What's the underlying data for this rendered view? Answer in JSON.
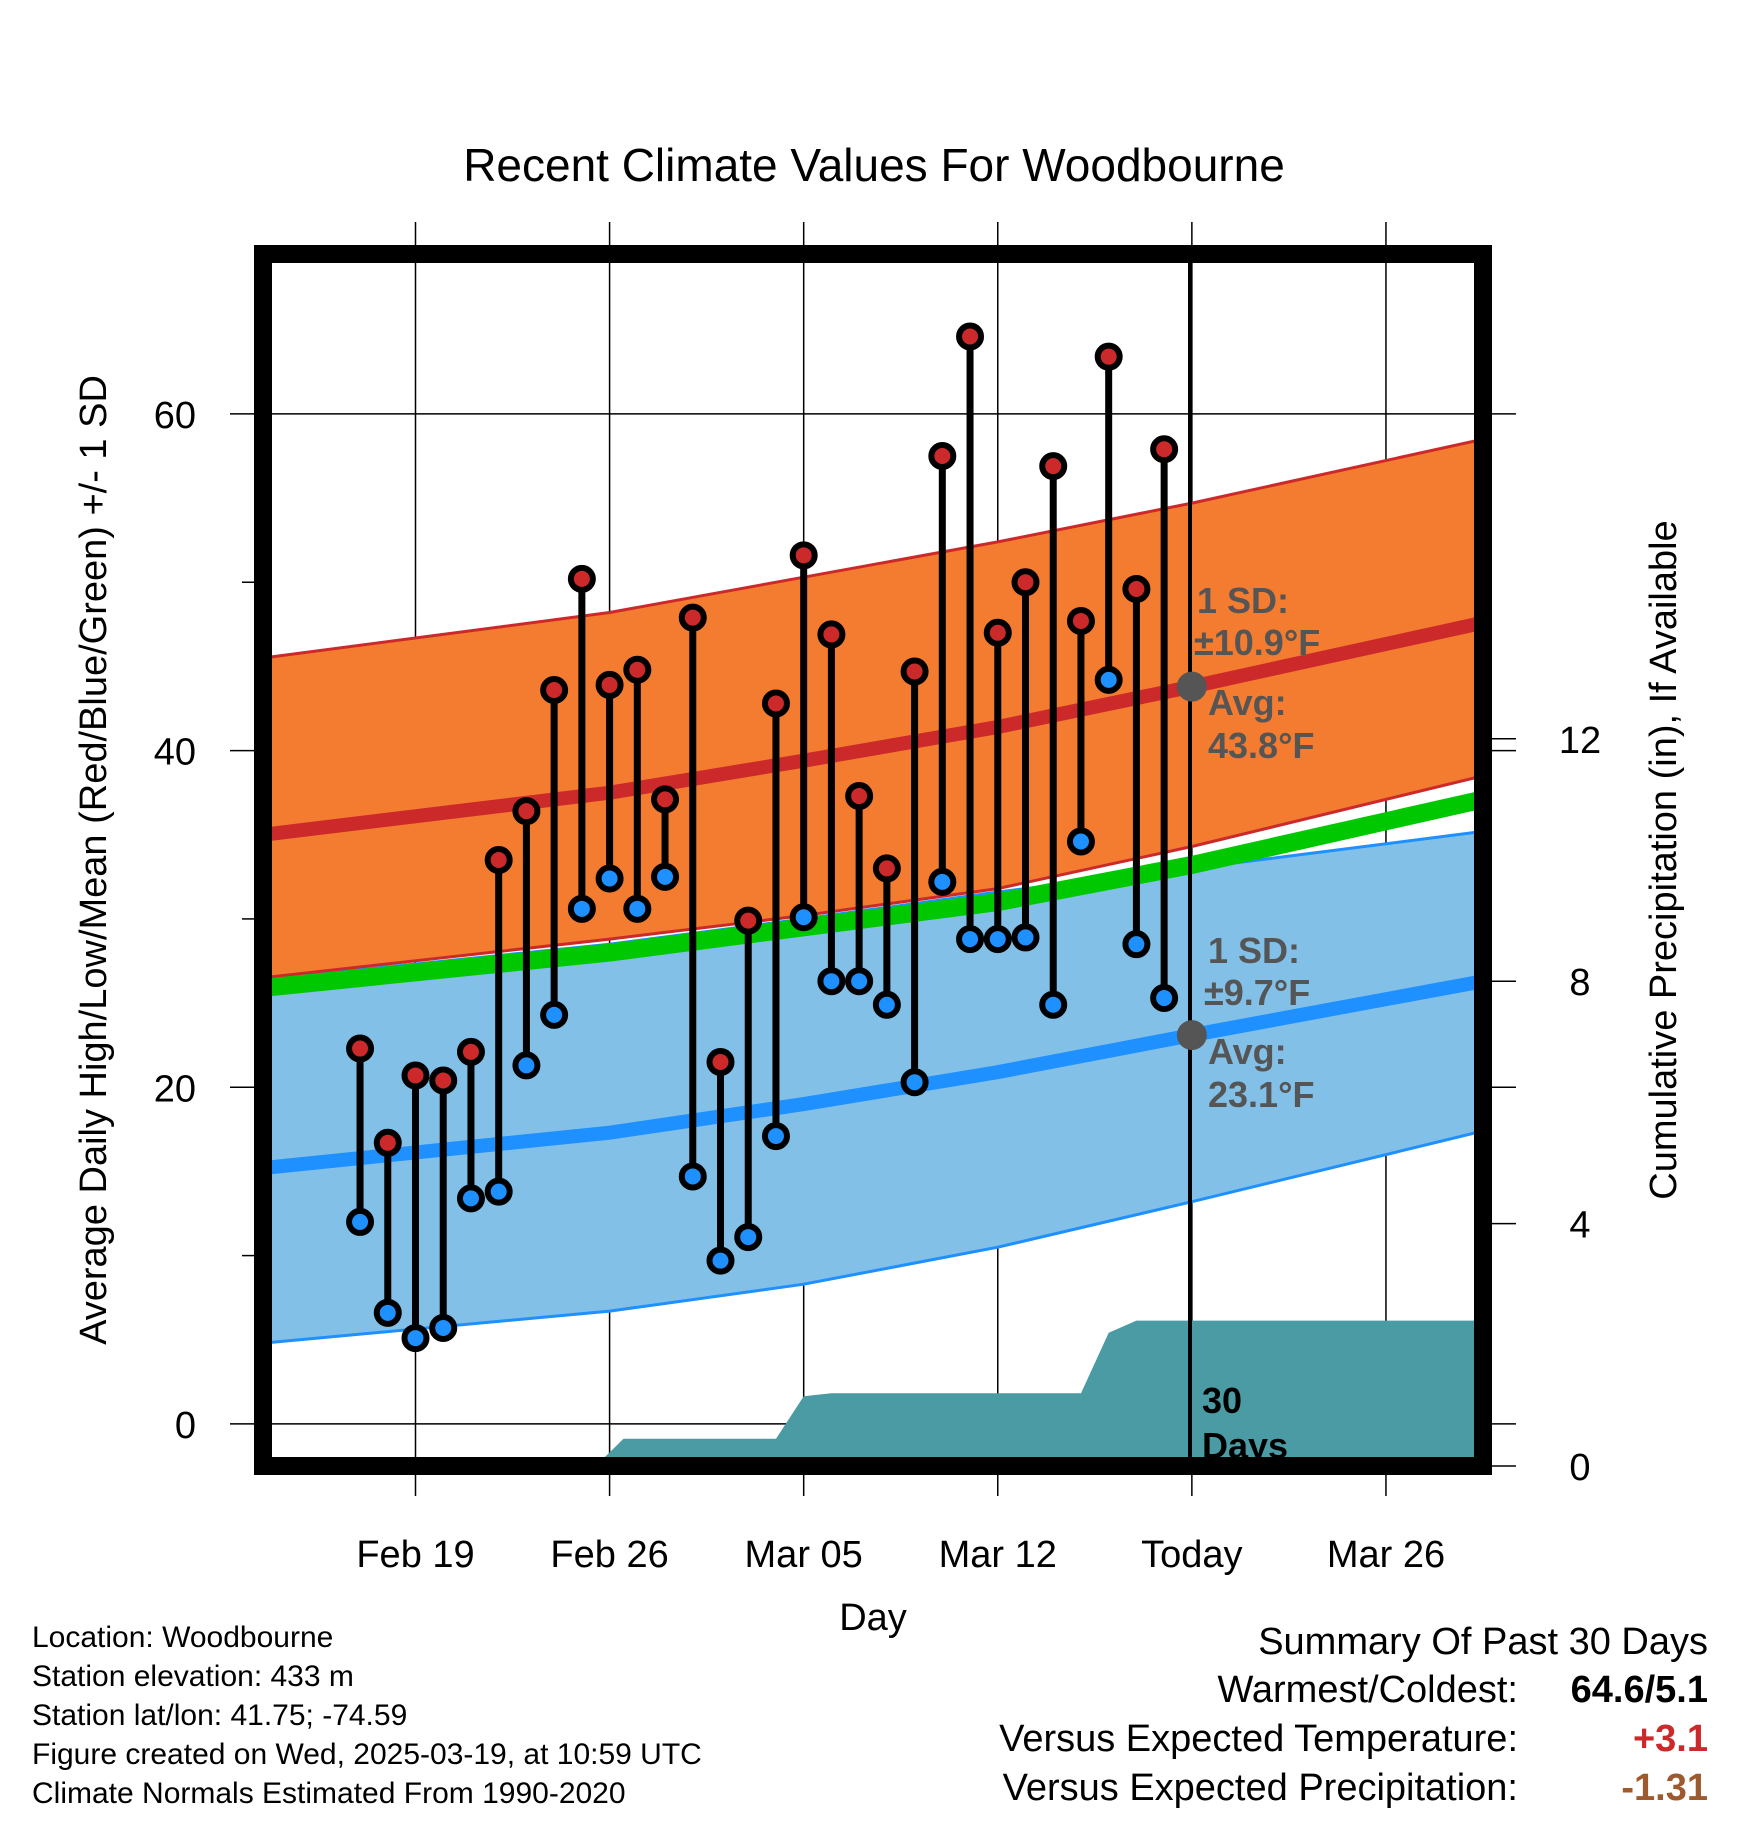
{
  "chart_data": {
    "type": "line",
    "title": "Recent Climate Values For Woodbourne",
    "xlabel": "Day",
    "ylabel": "Average Daily High/Low/Mean (Red/Blue/Green) +/- 1 SD",
    "y2label": "Cumulative Precipitation (in), If Available",
    "x_range_days": [
      -33.5,
      10.5
    ],
    "ylim": [
      -2.5,
      69.5
    ],
    "y2lim": [
      0,
      20
    ],
    "x_ticks": [
      {
        "day": -28,
        "label": "Feb 19"
      },
      {
        "day": -21,
        "label": "Feb 26"
      },
      {
        "day": -14,
        "label": "Mar 05"
      },
      {
        "day": -7,
        "label": "Mar 12"
      },
      {
        "day": 0,
        "label": "Today"
      },
      {
        "day": 7,
        "label": "Mar 26"
      }
    ],
    "y_ticks": [
      0,
      20,
      40,
      60
    ],
    "y_minor_ticks": [
      10,
      30,
      50
    ],
    "y2_ticks": [
      0,
      4,
      8,
      12
    ],
    "grid": true,
    "normals": {
      "days": [
        -33.5,
        -21,
        -14,
        -7,
        0,
        10.5
      ],
      "high_mean": [
        35.0,
        37.5,
        39.4,
        41.4,
        43.8,
        47.6
      ],
      "high_sd_upper": [
        45.5,
        48.2,
        50.3,
        52.4,
        54.7,
        58.5
      ],
      "high_sd_lower": [
        26.5,
        28.8,
        30.2,
        31.8,
        34.3,
        38.5
      ],
      "low_mean": [
        15.2,
        17.3,
        19.0,
        20.9,
        23.1,
        26.3
      ],
      "low_sd_upper": [
        26.4,
        28.5,
        30.0,
        31.6,
        33.0,
        35.2
      ],
      "low_sd_lower": [
        4.8,
        6.7,
        8.3,
        10.5,
        13.2,
        17.4
      ],
      "mean": [
        25.9,
        28.0,
        29.5,
        31.0,
        33.2,
        37.1
      ]
    },
    "series": [
      {
        "name": "High",
        "color": "#cc2a2a",
        "days": [
          -30,
          -29,
          -28,
          -27,
          -26,
          -25,
          -24,
          -23,
          -22,
          -21,
          -20,
          -19,
          -18,
          -17,
          -16,
          -15,
          -14,
          -13,
          -12,
          -11,
          -10,
          -9,
          -8,
          -7,
          -6,
          -5,
          -4,
          -3,
          -2,
          -1
        ],
        "values": [
          22.3,
          16.7,
          20.7,
          20.4,
          22.1,
          33.5,
          36.4,
          43.6,
          50.2,
          43.9,
          44.8,
          37.1,
          47.9,
          21.5,
          29.9,
          42.8,
          51.6,
          46.9,
          37.3,
          33.0,
          44.7,
          57.5,
          64.6,
          47.0,
          50.0,
          56.9,
          47.7,
          63.4,
          49.6,
          57.9
        ]
      },
      {
        "name": "Low",
        "color": "#1e90ff",
        "days": [
          -30,
          -29,
          -28,
          -27,
          -26,
          -25,
          -24,
          -23,
          -22,
          -21,
          -20,
          -19,
          -18,
          -17,
          -16,
          -15,
          -14,
          -13,
          -12,
          -11,
          -10,
          -9,
          -8,
          -7,
          -6,
          -5,
          -4,
          -3,
          -2,
          -1
        ],
        "values": [
          12.0,
          6.6,
          5.1,
          5.7,
          13.4,
          13.8,
          21.3,
          24.3,
          30.6,
          32.4,
          30.6,
          32.5,
          14.7,
          9.7,
          11.1,
          17.1,
          30.1,
          26.3,
          26.3,
          24.9,
          20.3,
          32.2,
          28.8,
          28.8,
          28.9,
          24.9,
          34.6,
          44.2,
          28.5,
          25.3
        ]
      },
      {
        "name": "Precipitation",
        "color": "#4a9ba3",
        "days": [
          -33.5,
          -21.5,
          -20.5,
          -15,
          -14,
          -13,
          -12,
          -9,
          -5,
          -4,
          -3,
          -2,
          10.5
        ],
        "values": [
          0,
          0,
          0.45,
          0.45,
          1.15,
          1.2,
          1.2,
          1.2,
          1.2,
          1.2,
          2.2,
          2.4,
          2.4
        ]
      }
    ],
    "annotations": [
      {
        "text_line1": "1 SD:",
        "text_line2": "±10.9°F",
        "text_line3": "Avg:",
        "text_line4": "43.8°F",
        "day": 0,
        "value": 43.8
      },
      {
        "text_line1": "1 SD:",
        "text_line2": "±9.7°F",
        "text_line3": "Avg:",
        "text_line4": "23.1°F",
        "day": 0,
        "value": 23.1
      },
      {
        "text_line1": "30",
        "text_line2": "Days"
      }
    ],
    "colors": {
      "high_band": "#f47c30",
      "high_line": "#cc2a2a",
      "low_band": "#82c0e8",
      "low_line": "#1e90ff",
      "mean_line": "#00c800",
      "precip": "#4a9ba3",
      "marker_edge": "#000000",
      "annotation_text": "#555555"
    }
  },
  "footer": {
    "location": "Location: Woodbourne",
    "elevation": "Station elevation: 433 m",
    "latlon": "Station lat/lon: 41.75; -74.59",
    "created": "Figure created on Wed, 2025-03-19, at 10:59 UTC",
    "normals": "Climate Normals Estimated From 1990-2020"
  },
  "summary": {
    "heading": "Summary Of Past 30 Days",
    "warmest_label": "Warmest/Coldest:",
    "warmest_value": "64.6/5.1",
    "temp_label": "Versus Expected Temperature:",
    "temp_value": "+3.1",
    "precip_label": "Versus Expected Precipitation:",
    "precip_value": "-1.31"
  }
}
